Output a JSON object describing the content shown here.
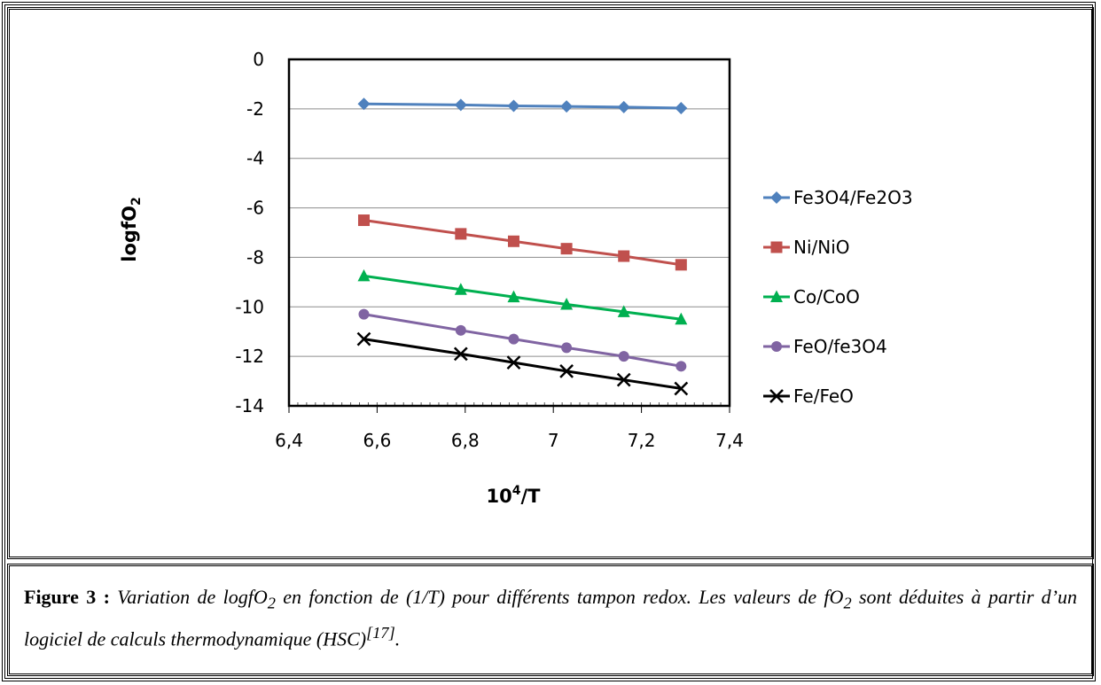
{
  "chart_data": {
    "type": "line",
    "ylabel": "logfO",
    "ylabel_sub": "2",
    "xlabel_base": "10",
    "xlabel_sup": "4",
    "xlabel_tail": "/T",
    "xlim": [
      6.4,
      7.4
    ],
    "ylim": [
      -14,
      0
    ],
    "xticks": [
      "6,4",
      "6,6",
      "6,8",
      "7",
      "7,2",
      "7,4"
    ],
    "yticks": [
      "0",
      "-2",
      "-4",
      "-6",
      "-8",
      "-10",
      "-12",
      "-14"
    ],
    "grid": "horizontal",
    "legend_position": "right",
    "x": [
      6.57,
      6.79,
      6.91,
      7.03,
      7.16,
      7.29
    ],
    "series": [
      {
        "name": "Fe3O4/Fe2O3",
        "color": "#4F81BD",
        "marker": "diamond",
        "values": [
          -1.8,
          -1.84,
          -1.88,
          -1.9,
          -1.93,
          -1.97
        ]
      },
      {
        "name": "Ni/NiO",
        "color": "#C0504D",
        "marker": "square",
        "values": [
          -6.5,
          -7.05,
          -7.35,
          -7.65,
          -7.95,
          -8.3
        ]
      },
      {
        "name": "Co/CoO",
        "color": "#00B050",
        "marker": "triangle",
        "values": [
          -8.75,
          -9.3,
          -9.6,
          -9.9,
          -10.2,
          -10.5
        ]
      },
      {
        "name": "FeO/fe3O4",
        "color": "#8064A2",
        "marker": "circle",
        "values": [
          -10.3,
          -10.95,
          -11.3,
          -11.65,
          -12.0,
          -12.4
        ]
      },
      {
        "name": "Fe/FeO",
        "color": "#000000",
        "marker": "x",
        "values": [
          -11.3,
          -11.9,
          -12.25,
          -12.6,
          -12.95,
          -13.3
        ]
      }
    ]
  },
  "caption": {
    "label": "Figure 3 :",
    "text_a": " Variation de logfO",
    "sub_a": "2",
    "text_b": " en fonction de (1/T) pour différents tampon redox. Les valeurs de fO",
    "sub_b": "2",
    "text_c": " sont déduites à partir d’un logiciel de calculs thermodynamique (HSC)",
    "ref": "[17]",
    "text_d": "."
  }
}
